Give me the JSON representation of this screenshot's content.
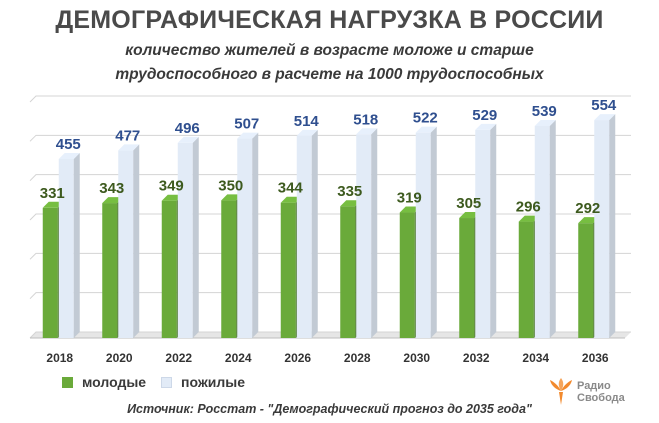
{
  "header": {
    "title": "ДЕМОГРАФИЧЕСКАЯ НАГРУЗКА В РОССИИ",
    "subtitle_line1": "количество жителей в возрасте моложе и старше",
    "subtitle_line2": "трудоспособного в расчете на 1000 трудоспособных"
  },
  "chart_data": {
    "type": "bar",
    "categories": [
      "2018",
      "2020",
      "2022",
      "2024",
      "2026",
      "2028",
      "2030",
      "2032",
      "2034",
      "2036"
    ],
    "series": [
      {
        "name": "молодые",
        "values": [
          331,
          343,
          349,
          350,
          344,
          335,
          319,
          305,
          296,
          292
        ],
        "color": "#6aaa3a",
        "label_color": "#3d5a1e"
      },
      {
        "name": "пожилые",
        "values": [
          455,
          477,
          496,
          507,
          514,
          518,
          522,
          529,
          539,
          554
        ],
        "color": "#e2ebf7",
        "label_color": "#2f4f8f"
      }
    ],
    "ylim": [
      0,
      600
    ],
    "grid": true,
    "legend": "bottom-left"
  },
  "legend": {
    "young_label": "молодые",
    "old_label": "пожилые"
  },
  "source": "Источник: Росстат - \"Демографический прогноз до 2035 года\"",
  "logo": {
    "line1": "Радио",
    "line2": "Свобода",
    "icon": "radio-svoboda-logo-icon",
    "color": "#f28a2e"
  }
}
